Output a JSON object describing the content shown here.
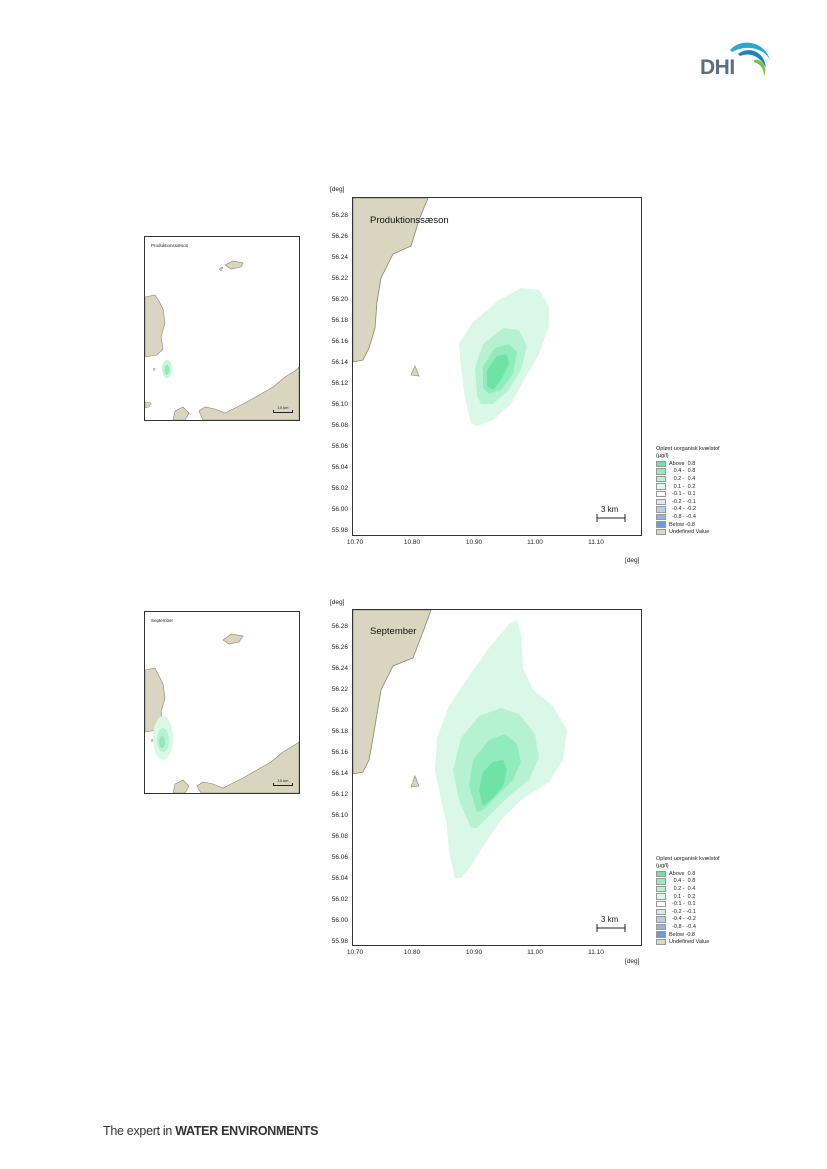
{
  "header": {
    "logo_text": "DHI"
  },
  "panels": [
    {
      "title": "Produktionssæson",
      "inset_title": "Produktionssæson",
      "inset_scale": "10 km",
      "y_unit": "[deg]",
      "x_unit": "[deg]",
      "scale_bar": "3 km",
      "y_ticks": [
        "56.28",
        "56.26",
        "56.24",
        "56.22",
        "56.20",
        "56.18",
        "56.16",
        "56.14",
        "56.12",
        "56.10",
        "56.08",
        "56.06",
        "56.04",
        "56.02",
        "56.00",
        "55.98"
      ],
      "x_ticks": [
        "10.70",
        "10.80",
        "10.90",
        "11.00",
        "11.10"
      ]
    },
    {
      "title": "September",
      "inset_title": "September",
      "inset_scale": "10 km",
      "y_unit": "[deg]",
      "x_unit": "[deg]",
      "scale_bar": "3 km",
      "y_ticks": [
        "56.28",
        "56.26",
        "56.24",
        "56.22",
        "56.20",
        "56.18",
        "56.16",
        "56.14",
        "56.12",
        "56.10",
        "56.08",
        "56.06",
        "56.04",
        "56.02",
        "56.00",
        "55.98"
      ],
      "x_ticks": [
        "10.70",
        "10.80",
        "10.90",
        "11.00",
        "11.10"
      ]
    }
  ],
  "legend": {
    "title_line1": "Opløst uorganisk kvælstof",
    "title_line2": "(µg/l)",
    "items": [
      {
        "label": "Above  0.8",
        "color": "#6fe3a6"
      },
      {
        "label": "   0.4 -  0.8",
        "color": "#92ebbc"
      },
      {
        "label": "   0.2 -  0.4",
        "color": "#b6f2d2"
      },
      {
        "label": "   0.1 -  0.2",
        "color": "#daf8e8"
      },
      {
        "label": "  -0.1 -  0.1",
        "color": "#ffffff"
      },
      {
        "label": "  -0.2 - -0.1",
        "color": "#dae6f6"
      },
      {
        "label": "  -0.4 - -0.2",
        "color": "#b6cdee"
      },
      {
        "label": "  -0.8 - -0.4",
        "color": "#92b4e5"
      },
      {
        "label": "Below -0.8",
        "color": "#6e9bdc"
      },
      {
        "label": "Undefined Value",
        "color": "#dcd8bf"
      }
    ]
  },
  "footer": {
    "prefix": "The expert in ",
    "emphasis": "WATER ENVIRONMENTS"
  },
  "colors": {
    "land": "#d9d5bf",
    "land_edge": "#8a8672"
  }
}
